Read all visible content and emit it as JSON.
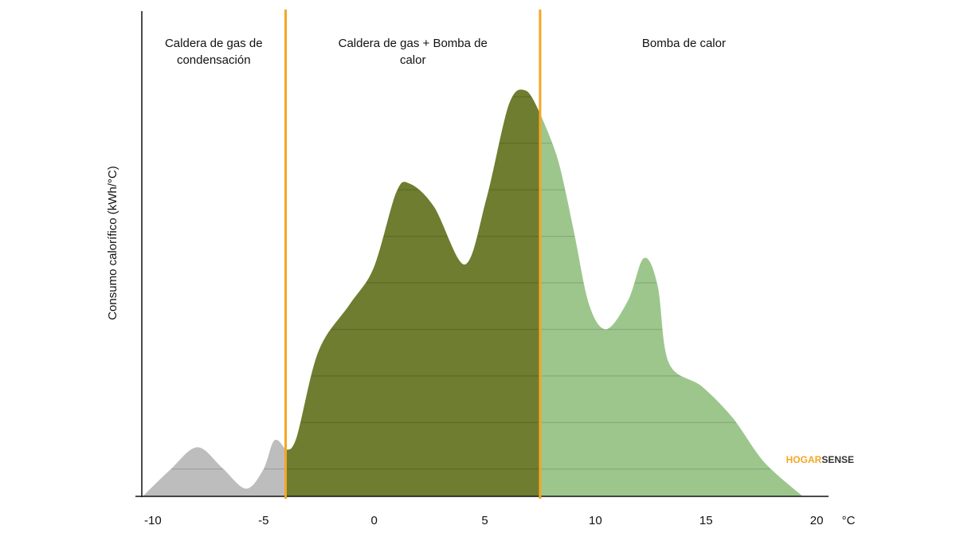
{
  "chart_data": {
    "type": "area",
    "y_axis_label": "Consumo calorífico (kWh/°C)",
    "x_axis_unit": "°C",
    "xlim": [
      -10.5,
      20.5
    ],
    "ylim": [
      0,
      10.4
    ],
    "xticks": [
      -10,
      -5,
      0,
      5,
      10,
      15,
      20
    ],
    "thresholds": [
      -4,
      7.5
    ],
    "threshold_color": "#f5a623",
    "series": [
      {
        "name": "Caldera de gas de condensación",
        "color": "#bdbdbd",
        "x": [
          -10.4,
          -9.2,
          -8,
          -6.9,
          -5.8,
          -5.0,
          -4.5,
          -4.0
        ],
        "values": [
          0,
          0.55,
          1.03,
          0.6,
          0.14,
          0.55,
          1.18,
          0.97
        ]
      },
      {
        "name": "Caldera de gas + Bomba de calor",
        "color": "#6e7d2f",
        "x": [
          -4.0,
          -3.5,
          -2.5,
          -1.1,
          0,
          1.0,
          1.6,
          2.7,
          4.1,
          5.1,
          6.1,
          6.85,
          7.5
        ],
        "values": [
          0.97,
          1.23,
          3.1,
          4.1,
          4.9,
          6.5,
          6.7,
          6.2,
          4.96,
          6.4,
          8.4,
          8.7,
          8.2
        ]
      },
      {
        "name": "Bomba de calor",
        "color": "#9dc68d",
        "x": [
          7.5,
          8.3,
          9.0,
          9.7,
          10.5,
          11.5,
          12.2,
          12.8,
          13.3,
          14.8,
          16.2,
          17.6,
          19.3
        ],
        "values": [
          8.2,
          7.2,
          5.7,
          4.1,
          3.57,
          4.2,
          5.1,
          4.5,
          2.85,
          2.34,
          1.66,
          0.72,
          0
        ]
      }
    ],
    "brand": [
      "HOGAR",
      "SENSE"
    ]
  }
}
